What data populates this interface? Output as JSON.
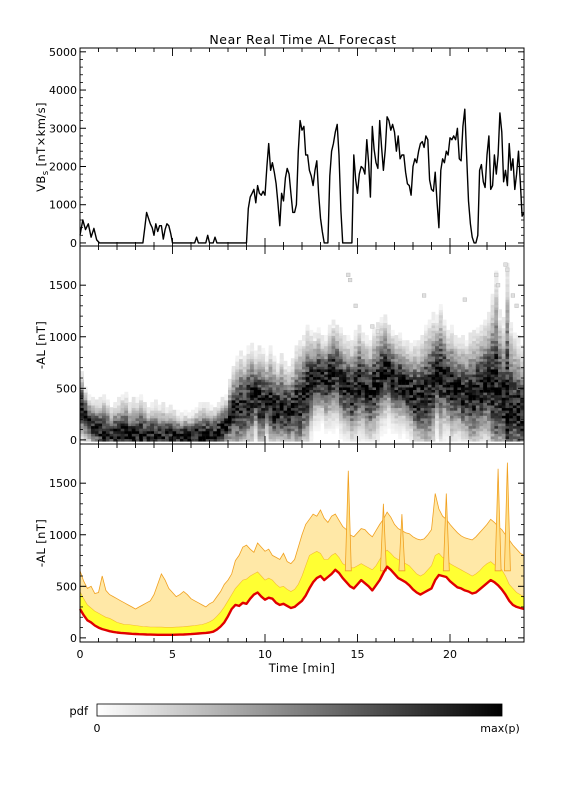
{
  "title": "Near Real Time AL Forecast",
  "chart_data": [
    {
      "panel": "vbs",
      "type": "line",
      "ylabel": "VB_s [nT×km/s]",
      "ylabel_main": "VB",
      "ylabel_sub": "s",
      "ylabel_unit": " [nT×km/s]",
      "xlim": [
        0,
        24
      ],
      "ylim": [
        -80,
        5100
      ],
      "yticks": [
        0,
        1000,
        2000,
        3000,
        4000,
        5000
      ],
      "x": [
        0,
        0.15,
        0.3,
        0.45,
        0.6,
        0.75,
        0.9,
        1.05,
        1.2,
        1.4,
        1.6,
        1.8,
        2.0,
        2.2,
        2.4,
        2.6,
        2.8,
        3.0,
        3.2,
        3.4,
        3.5,
        3.6,
        3.7,
        3.8,
        3.9,
        4.0,
        4.1,
        4.2,
        4.3,
        4.4,
        4.5,
        4.6,
        4.7,
        4.8,
        4.9,
        5.0,
        5.1,
        5.2,
        5.4,
        5.6,
        5.8,
        6.0,
        6.1,
        6.2,
        6.3,
        6.4,
        6.5,
        6.6,
        6.7,
        6.8,
        6.9,
        7.0,
        7.1,
        7.2,
        7.3,
        7.4,
        7.5,
        7.6,
        7.7,
        7.8,
        7.9,
        8.0,
        8.2,
        8.4,
        8.6,
        8.8,
        9.0,
        9.1,
        9.2,
        9.3,
        9.4,
        9.5,
        9.6,
        9.7,
        9.8,
        9.9,
        10.0,
        10.1,
        10.2,
        10.3,
        10.4,
        10.5,
        10.6,
        10.7,
        10.8,
        10.9,
        11.0,
        11.1,
        11.2,
        11.3,
        11.4,
        11.5,
        11.6,
        11.7,
        11.8,
        11.9,
        12.0,
        12.1,
        12.2,
        12.3,
        12.4,
        12.5,
        12.6,
        12.7,
        12.8,
        12.9,
        13.0,
        13.1,
        13.2,
        13.3,
        13.4,
        13.5,
        13.6,
        13.7,
        13.8,
        13.9,
        14.0,
        14.1,
        14.2,
        14.3,
        14.4,
        14.5,
        14.6,
        14.7,
        14.8,
        14.9,
        15.0,
        15.1,
        15.2,
        15.3,
        15.4,
        15.5,
        15.6,
        15.7,
        15.8,
        15.9,
        16.0,
        16.1,
        16.2,
        16.3,
        16.4,
        16.5,
        16.6,
        16.7,
        16.8,
        16.9,
        17.0,
        17.1,
        17.2,
        17.3,
        17.4,
        17.5,
        17.6,
        17.7,
        17.8,
        17.9,
        18.0,
        18.1,
        18.2,
        18.3,
        18.4,
        18.5,
        18.6,
        18.7,
        18.8,
        18.9,
        19.0,
        19.1,
        19.2,
        19.3,
        19.4,
        19.5,
        19.6,
        19.7,
        19.8,
        19.9,
        20.0,
        20.1,
        20.2,
        20.3,
        20.4,
        20.5,
        20.6,
        20.7,
        20.8,
        20.9,
        21.0,
        21.1,
        21.2,
        21.3,
        21.4,
        21.5,
        21.6,
        21.7,
        21.8,
        21.9,
        22.0,
        22.1,
        22.2,
        22.3,
        22.4,
        22.5,
        22.6,
        22.7,
        22.8,
        22.9,
        23.0,
        23.1,
        23.2,
        23.3,
        23.4,
        23.5,
        23.6,
        23.7,
        23.8,
        23.9,
        24.0
      ],
      "y": [
        200,
        600,
        350,
        500,
        150,
        380,
        80,
        0,
        0,
        0,
        0,
        0,
        0,
        0,
        0,
        0,
        0,
        0,
        0,
        0,
        400,
        800,
        650,
        500,
        400,
        200,
        500,
        300,
        450,
        450,
        100,
        350,
        500,
        450,
        250,
        0,
        0,
        0,
        0,
        0,
        0,
        0,
        0,
        0,
        150,
        0,
        0,
        0,
        0,
        0,
        200,
        0,
        0,
        0,
        150,
        0,
        0,
        0,
        0,
        0,
        0,
        0,
        0,
        0,
        0,
        0,
        0,
        900,
        1200,
        1300,
        1400,
        1050,
        1500,
        1300,
        1250,
        1350,
        1250,
        2000,
        2600,
        1900,
        2100,
        1850,
        1550,
        1050,
        450,
        1300,
        1100,
        1700,
        1950,
        1800,
        1300,
        800,
        800,
        1000,
        2400,
        3200,
        2950,
        3050,
        2300,
        2300,
        1900,
        1750,
        1500,
        1900,
        2150,
        1300,
        650,
        300,
        0,
        0,
        0,
        1750,
        2400,
        2600,
        2900,
        3100,
        2300,
        850,
        0,
        0,
        0,
        0,
        0,
        0,
        2300,
        1650,
        1300,
        1800,
        2000,
        1950,
        1800,
        2700,
        2100,
        1200,
        3050,
        2450,
        2100,
        1950,
        3200,
        2500,
        1900,
        2450,
        3300,
        3200,
        2950,
        3100,
        2900,
        2400,
        2800,
        2200,
        2300,
        2300,
        1850,
        1550,
        1500,
        1250,
        2000,
        2200,
        2100,
        2400,
        2600,
        2650,
        2500,
        2800,
        2700,
        1650,
        1400,
        1350,
        1850,
        1050,
        400,
        1900,
        2200,
        2100,
        2400,
        2300,
        2750,
        2700,
        2800,
        2700,
        3000,
        2200,
        2150,
        3050,
        3500,
        2300,
        1100,
        500,
        150,
        0,
        0,
        200,
        1900,
        2050,
        1600,
        1450,
        2300,
        2800,
        1400,
        1500,
        2300,
        1800,
        2300,
        3400,
        2900,
        1600,
        1900,
        1500,
        2600,
        1900,
        2200,
        1400,
        1800,
        2400,
        1600,
        700,
        800
      ]
    },
    {
      "panel": "pdf",
      "type": "heatmap",
      "ylabel": "-AL [nT]",
      "xlim": [
        0,
        24
      ],
      "ylim": [
        -40,
        1880
      ],
      "yticks": [
        0,
        500,
        1000,
        1500
      ],
      "median_al": [
        320,
        230,
        180,
        140,
        115,
        95,
        80,
        70,
        62,
        55,
        50,
        45,
        42,
        40,
        38,
        36,
        35,
        34,
        33,
        32,
        31,
        30,
        30,
        30,
        30,
        30,
        30,
        30,
        32,
        34,
        36,
        38,
        40,
        42,
        45,
        50,
        60,
        80,
        110,
        150,
        220,
        280,
        300,
        330,
        330,
        380,
        410,
        430,
        380,
        360,
        400,
        380,
        320,
        310,
        330,
        300,
        280,
        310,
        330,
        360,
        420,
        490,
        560,
        590,
        620,
        600,
        560,
        610,
        650,
        640,
        580,
        520,
        500,
        450,
        510,
        560,
        530,
        490,
        450,
        520,
        570,
        640,
        680,
        660,
        600,
        560,
        560,
        540,
        500,
        470,
        430,
        410,
        430,
        450,
        470,
        560,
        640,
        620,
        600,
        550,
        520,
        500,
        490,
        460,
        450,
        430,
        440,
        480,
        500,
        540,
        560,
        540,
        530,
        470,
        400,
        360,
        320,
        300,
        290,
        270
      ],
      "max_al": [
        650,
        500,
        420,
        380,
        360,
        380,
        420,
        360,
        300,
        350,
        380,
        420,
        430,
        330,
        400,
        380,
        420,
        350,
        300,
        330,
        360,
        320,
        330,
        300,
        310,
        270,
        260,
        230,
        270,
        240,
        260,
        300,
        330,
        350,
        330,
        310,
        300,
        340,
        380,
        420,
        560,
        690,
        790,
        850,
        800,
        880,
        920,
        830,
        900,
        860,
        780,
        880,
        800,
        720,
        820,
        740,
        700,
        760,
        900,
        950,
        980,
        1100,
        1050,
        1010,
        1060,
        980,
        990,
        1080,
        1140,
        1100,
        1060,
        1000,
        980,
        950,
        1030,
        1100,
        1020,
        1000,
        950,
        1060,
        1120,
        1160,
        1200,
        1100,
        1050,
        1000,
        1010,
        950,
        930,
        910,
        950,
        930,
        1000,
        1100,
        1150,
        1210,
        1180,
        1300,
        1150,
        1040,
        1100,
        1000,
        960,
        980,
        940,
        1020,
        1050,
        1060,
        1100,
        1150,
        1220,
        1390,
        1620,
        1240,
        1160,
        1700,
        1120,
        1020,
        980,
        890
      ],
      "outliers": [
        [
          14.5,
          1600
        ],
        [
          14.6,
          1550
        ],
        [
          14.9,
          1300
        ],
        [
          15.8,
          1100
        ],
        [
          16.1,
          1050
        ],
        [
          18.6,
          1400
        ],
        [
          20.8,
          1360
        ],
        [
          22.5,
          1600
        ],
        [
          22.6,
          1500
        ],
        [
          23.0,
          1700
        ],
        [
          23.1,
          1650
        ],
        [
          23.4,
          1400
        ],
        [
          23.6,
          1300
        ]
      ]
    },
    {
      "panel": "band",
      "type": "area",
      "ylabel": "-AL [nT]",
      "xlabel": "Time [min]",
      "xlim": [
        0,
        24
      ],
      "ylim": [
        -40,
        1880
      ],
      "xticks": [
        0,
        5,
        10,
        15,
        20
      ],
      "yticks": [
        0,
        500,
        1000,
        1500
      ],
      "x": [
        0,
        0.2,
        0.4,
        0.6,
        0.8,
        1.0,
        1.2,
        1.4,
        1.6,
        1.8,
        2.0,
        2.2,
        2.4,
        2.6,
        2.8,
        3.0,
        3.2,
        3.4,
        3.6,
        3.8,
        4.0,
        4.2,
        4.4,
        4.6,
        4.8,
        5.0,
        5.2,
        5.4,
        5.6,
        5.8,
        6.0,
        6.2,
        6.4,
        6.6,
        6.8,
        7.0,
        7.2,
        7.4,
        7.6,
        7.8,
        8.0,
        8.2,
        8.4,
        8.6,
        8.8,
        9.0,
        9.2,
        9.4,
        9.6,
        9.8,
        10.0,
        10.2,
        10.4,
        10.6,
        10.8,
        11.0,
        11.2,
        11.4,
        11.6,
        11.8,
        12.0,
        12.2,
        12.4,
        12.6,
        12.8,
        13.0,
        13.2,
        13.4,
        13.6,
        13.8,
        14.0,
        14.2,
        14.4,
        14.6,
        14.8,
        15.0,
        15.2,
        15.4,
        15.6,
        15.8,
        16.0,
        16.2,
        16.4,
        16.6,
        16.8,
        17.0,
        17.2,
        17.4,
        17.6,
        17.8,
        18.0,
        18.2,
        18.4,
        18.6,
        18.8,
        19.0,
        19.2,
        19.4,
        19.6,
        19.8,
        20.0,
        20.2,
        20.4,
        20.6,
        20.8,
        21.0,
        21.2,
        21.4,
        21.6,
        21.8,
        22.0,
        22.2,
        22.4,
        22.6,
        22.8,
        23.0,
        23.2,
        23.4,
        23.6,
        23.8,
        24.0
      ],
      "median": [
        280,
        220,
        170,
        150,
        120,
        100,
        85,
        75,
        65,
        58,
        52,
        48,
        45,
        42,
        40,
        38,
        36,
        35,
        33,
        32,
        31,
        30,
        30,
        30,
        30,
        30,
        31,
        32,
        33,
        35,
        37,
        40,
        42,
        45,
        48,
        52,
        60,
        80,
        110,
        150,
        210,
        280,
        320,
        310,
        340,
        330,
        380,
        420,
        440,
        400,
        370,
        390,
        380,
        340,
        320,
        330,
        310,
        290,
        300,
        330,
        360,
        410,
        480,
        540,
        580,
        600,
        560,
        590,
        620,
        660,
        630,
        580,
        540,
        500,
        480,
        520,
        560,
        530,
        500,
        460,
        510,
        560,
        630,
        690,
        660,
        620,
        580,
        560,
        540,
        510,
        470,
        440,
        420,
        440,
        460,
        480,
        560,
        610,
        600,
        590,
        550,
        520,
        490,
        480,
        460,
        450,
        430,
        440,
        470,
        500,
        530,
        560,
        540,
        510,
        470,
        420,
        360,
        320,
        300,
        290,
        280
      ],
      "q75": [
        450,
        380,
        320,
        290,
        260,
        240,
        220,
        200,
        190,
        170,
        150,
        140,
        130,
        130,
        125,
        120,
        115,
        110,
        108,
        105,
        105,
        104,
        104,
        103,
        103,
        103,
        104,
        106,
        108,
        112,
        116,
        120,
        125,
        130,
        140,
        155,
        175,
        210,
        250,
        300,
        360,
        420,
        480,
        520,
        560,
        570,
        600,
        620,
        640,
        600,
        560,
        580,
        560,
        520,
        490,
        500,
        470,
        450,
        470,
        520,
        600,
        700,
        800,
        820,
        840,
        820,
        760,
        760,
        800,
        820,
        780,
        720,
        700,
        680,
        680,
        700,
        720,
        700,
        680,
        660,
        700,
        760,
        820,
        850,
        820,
        780,
        760,
        740,
        720,
        700,
        660,
        620,
        600,
        620,
        660,
        700,
        800,
        820,
        780,
        760,
        720,
        700,
        680,
        660,
        640,
        620,
        600,
        620,
        650,
        690,
        720,
        740,
        710,
        690,
        660,
        600,
        520,
        480,
        440,
        420,
        400
      ],
      "max": [
        650,
        550,
        480,
        500,
        430,
        440,
        600,
        460,
        420,
        400,
        380,
        360,
        340,
        320,
        300,
        280,
        300,
        320,
        340,
        360,
        420,
        520,
        620,
        560,
        480,
        440,
        400,
        420,
        450,
        420,
        380,
        360,
        340,
        320,
        300,
        330,
        350,
        400,
        450,
        520,
        560,
        620,
        750,
        800,
        880,
        900,
        860,
        830,
        920,
        880,
        840,
        860,
        800,
        780,
        760,
        820,
        740,
        720,
        760,
        880,
        1000,
        1100,
        1150,
        1200,
        1180,
        1240,
        1160,
        1120,
        1180,
        1200,
        1140,
        1080,
        1050,
        1000,
        980,
        1020,
        1060,
        1050,
        1010,
        980,
        1040,
        1100,
        1150,
        1220,
        1170,
        1100,
        1060,
        1040,
        1020,
        1010,
        980,
        960,
        950,
        960,
        1000,
        1050,
        1400,
        1250,
        1180,
        1150,
        1100,
        1060,
        1020,
        990,
        970,
        960,
        950,
        980,
        1020,
        1060,
        1100,
        1150,
        1120,
        1080,
        1050,
        1000,
        950,
        900,
        860,
        820,
        800
      ],
      "spikes": [
        [
          14.5,
          1620
        ],
        [
          16.4,
          1300
        ],
        [
          17.4,
          1200
        ],
        [
          19.8,
          1400
        ],
        [
          22.6,
          1640
        ],
        [
          23.1,
          1700
        ]
      ]
    }
  ],
  "colorbar": {
    "label": "pdf",
    "min_label": "0",
    "max_label": "max(p)"
  },
  "colors": {
    "median_line": "#e00000",
    "band_fill": "#ffff33",
    "band_outer": "#ffe08a",
    "envelope_line": "#f0a020",
    "axis": "#000000"
  }
}
